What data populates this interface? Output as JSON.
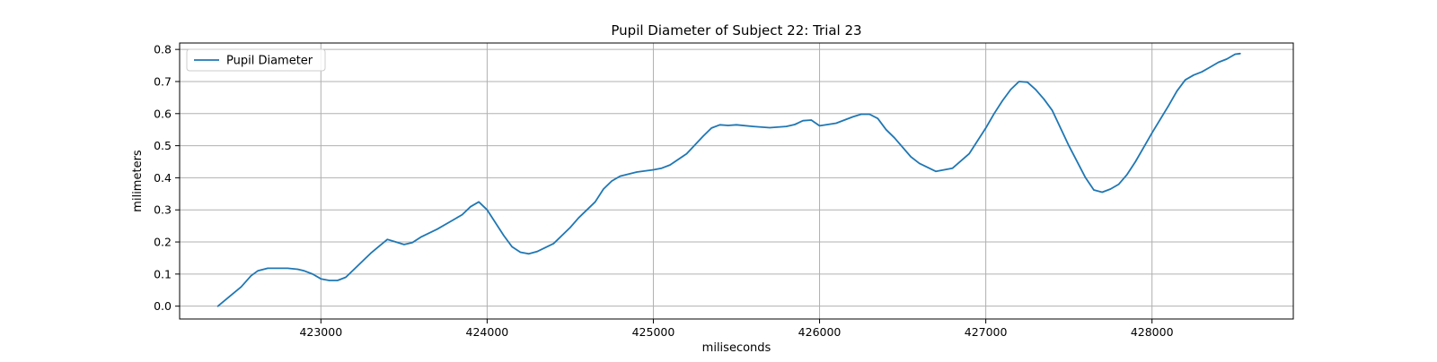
{
  "chart_data": {
    "type": "line",
    "title": "Pupil Diameter of Subject 22: Trial 23",
    "xlabel": "miliseconds",
    "ylabel": "milimeters",
    "xlim": [
      422150,
      428850
    ],
    "ylim": [
      -0.04,
      0.82
    ],
    "xticks": [
      423000,
      424000,
      425000,
      426000,
      427000,
      428000
    ],
    "yticks": [
      0.0,
      0.1,
      0.2,
      0.3,
      0.4,
      0.5,
      0.6,
      0.7,
      0.8
    ],
    "xtick_labels": [
      "423000",
      "424000",
      "425000",
      "426000",
      "427000",
      "428000"
    ],
    "ytick_labels": [
      "0.0",
      "0.1",
      "0.2",
      "0.3",
      "0.4",
      "0.5",
      "0.6",
      "0.7",
      "0.8"
    ],
    "grid": true,
    "legend_position": "top-left",
    "series": [
      {
        "name": "Pupil Diameter",
        "color": "#1f77b4",
        "x": [
          422380,
          422450,
          422520,
          422580,
          422620,
          422680,
          422750,
          422800,
          422860,
          422900,
          422950,
          423000,
          423050,
          423100,
          423150,
          423200,
          423300,
          423400,
          423450,
          423500,
          423550,
          423600,
          423700,
          423800,
          423850,
          423900,
          423950,
          424000,
          424100,
          424150,
          424200,
          424250,
          424300,
          424400,
          424500,
          424550,
          424650,
          424700,
          424750,
          424800,
          424900,
          425000,
          425050,
          425100,
          425200,
          425300,
          425350,
          425400,
          425450,
          425500,
          425600,
          425700,
          425800,
          425850,
          425900,
          425950,
          426000,
          426100,
          426200,
          426250,
          426300,
          426350,
          426400,
          426450,
          426550,
          426600,
          426700,
          426800,
          426900,
          427000,
          427050,
          427100,
          427150,
          427200,
          427250,
          427300,
          427350,
          427400,
          427500,
          427600,
          427650,
          427700,
          427750,
          427800,
          427850,
          427900,
          428000,
          428100,
          428150,
          428200,
          428250,
          428300,
          428350,
          428400,
          428450,
          428500,
          428530
        ],
        "y": [
          0.0,
          0.03,
          0.06,
          0.095,
          0.11,
          0.118,
          0.118,
          0.118,
          0.115,
          0.11,
          0.1,
          0.085,
          0.08,
          0.08,
          0.09,
          0.115,
          0.165,
          0.208,
          0.2,
          0.192,
          0.198,
          0.215,
          0.24,
          0.27,
          0.285,
          0.31,
          0.325,
          0.3,
          0.22,
          0.185,
          0.168,
          0.163,
          0.17,
          0.195,
          0.245,
          0.275,
          0.325,
          0.365,
          0.39,
          0.405,
          0.418,
          0.425,
          0.43,
          0.44,
          0.475,
          0.53,
          0.555,
          0.565,
          0.563,
          0.565,
          0.56,
          0.556,
          0.56,
          0.566,
          0.578,
          0.58,
          0.562,
          0.57,
          0.59,
          0.598,
          0.598,
          0.585,
          0.55,
          0.525,
          0.465,
          0.445,
          0.42,
          0.43,
          0.475,
          0.555,
          0.6,
          0.64,
          0.675,
          0.7,
          0.698,
          0.675,
          0.645,
          0.61,
          0.5,
          0.4,
          0.362,
          0.355,
          0.365,
          0.38,
          0.41,
          0.45,
          0.54,
          0.625,
          0.67,
          0.705,
          0.72,
          0.73,
          0.745,
          0.76,
          0.77,
          0.785,
          0.787
        ]
      }
    ]
  }
}
